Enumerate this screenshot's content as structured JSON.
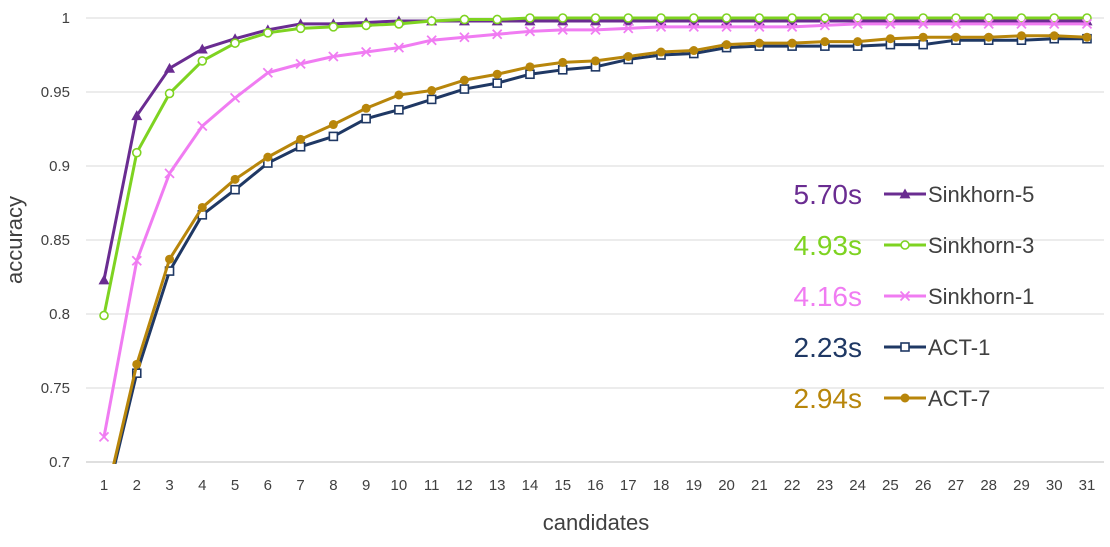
{
  "chart_data": {
    "type": "line",
    "xlabel": "candidates",
    "ylabel": "accuracy",
    "x": [
      1,
      2,
      3,
      4,
      5,
      6,
      7,
      8,
      9,
      10,
      11,
      12,
      13,
      14,
      15,
      16,
      17,
      18,
      19,
      20,
      21,
      22,
      23,
      24,
      25,
      26,
      27,
      28,
      29,
      30,
      31
    ],
    "ylim": [
      0.7,
      1.0
    ],
    "yticks": [
      "0.7",
      "0.75",
      "0.8",
      "0.85",
      "0.9",
      "0.95",
      "1"
    ],
    "grid": "horizontal",
    "legend_position": "right",
    "series": [
      {
        "name": "Sinkhorn-5",
        "time": "5.70s",
        "color": "#6a2c91",
        "time_color": "#6a2c91",
        "marker": "triangle-filled",
        "values": [
          0.823,
          0.934,
          0.966,
          0.979,
          0.986,
          0.992,
          0.996,
          0.996,
          0.997,
          0.998,
          0.998,
          0.998,
          0.998,
          0.998,
          0.998,
          0.998,
          0.998,
          0.998,
          0.998,
          0.998,
          0.998,
          0.998,
          0.998,
          0.998,
          0.998,
          0.998,
          0.998,
          0.998,
          0.998,
          0.998,
          0.998
        ]
      },
      {
        "name": "Sinkhorn-3",
        "time": "4.93s",
        "color": "#7ed321",
        "time_color": "#7ed321",
        "marker": "circle-open",
        "values": [
          0.799,
          0.909,
          0.949,
          0.971,
          0.983,
          0.99,
          0.993,
          0.994,
          0.995,
          0.996,
          0.998,
          0.999,
          0.999,
          1.0,
          1.0,
          1.0,
          1.0,
          1.0,
          1.0,
          1.0,
          1.0,
          1.0,
          1.0,
          1.0,
          1.0,
          1.0,
          1.0,
          1.0,
          1.0,
          1.0,
          1.0
        ]
      },
      {
        "name": "Sinkhorn-1",
        "time": "4.16s",
        "color": "#f07cf2",
        "time_color": "#f07cf2",
        "marker": "x",
        "values": [
          0.717,
          0.836,
          0.895,
          0.927,
          0.946,
          0.963,
          0.969,
          0.974,
          0.977,
          0.98,
          0.985,
          0.987,
          0.989,
          0.991,
          0.992,
          0.992,
          0.993,
          0.994,
          0.994,
          0.994,
          0.994,
          0.994,
          0.995,
          0.996,
          0.996,
          0.996,
          0.996,
          0.996,
          0.996,
          0.996,
          0.996
        ]
      },
      {
        "name": "ACT-1",
        "time": "2.23s",
        "color": "#1f3864",
        "time_color": "#1f3864",
        "marker": "square-open",
        "values": [
          0.668,
          0.76,
          0.829,
          0.867,
          0.884,
          0.902,
          0.913,
          0.92,
          0.932,
          0.938,
          0.945,
          0.952,
          0.956,
          0.962,
          0.965,
          0.967,
          0.972,
          0.975,
          0.976,
          0.98,
          0.981,
          0.981,
          0.981,
          0.981,
          0.982,
          0.982,
          0.985,
          0.985,
          0.985,
          0.986,
          0.986
        ]
      },
      {
        "name": "ACT-7",
        "time": "2.94s",
        "color": "#b8860b",
        "time_color": "#b8860b",
        "marker": "circle-filled",
        "values": [
          0.67,
          0.766,
          0.837,
          0.872,
          0.891,
          0.906,
          0.918,
          0.928,
          0.939,
          0.948,
          0.951,
          0.958,
          0.962,
          0.967,
          0.97,
          0.971,
          0.974,
          0.977,
          0.978,
          0.982,
          0.983,
          0.983,
          0.984,
          0.984,
          0.986,
          0.987,
          0.987,
          0.987,
          0.988,
          0.988,
          0.987
        ]
      }
    ]
  }
}
